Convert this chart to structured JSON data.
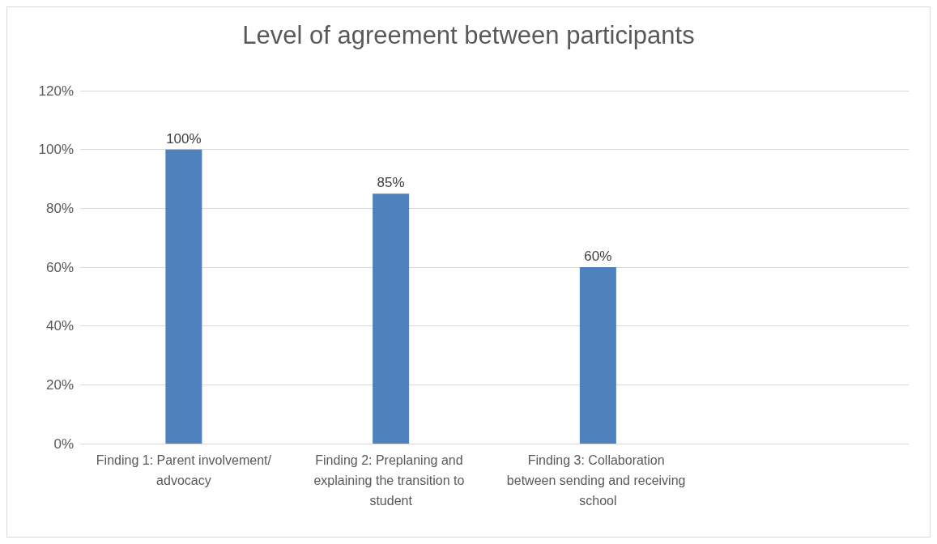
{
  "chart_data": {
    "type": "bar",
    "title": "Level of agreement between participants",
    "categories": [
      "Finding 1: Parent involvement/advocacy",
      "Finding 2: Preplaning and explaining the transition to student",
      "Finding 3: Collaboration between sending and receiving school",
      null
    ],
    "values": [
      100,
      85,
      60,
      null
    ],
    "value_labels": [
      "100%",
      "85%",
      "60%",
      null
    ],
    "color": "#4f81bd",
    "ylim": [
      0,
      120
    ],
    "yticks": [
      {
        "value": 0,
        "label": "0%"
      },
      {
        "value": 20,
        "label": "20%"
      },
      {
        "value": 40,
        "label": "40%"
      },
      {
        "value": 60,
        "label": "60%"
      },
      {
        "value": 80,
        "label": "80%"
      },
      {
        "value": 100,
        "label": "100%"
      },
      {
        "value": 120,
        "label": "120%"
      }
    ],
    "grid": "y"
  }
}
